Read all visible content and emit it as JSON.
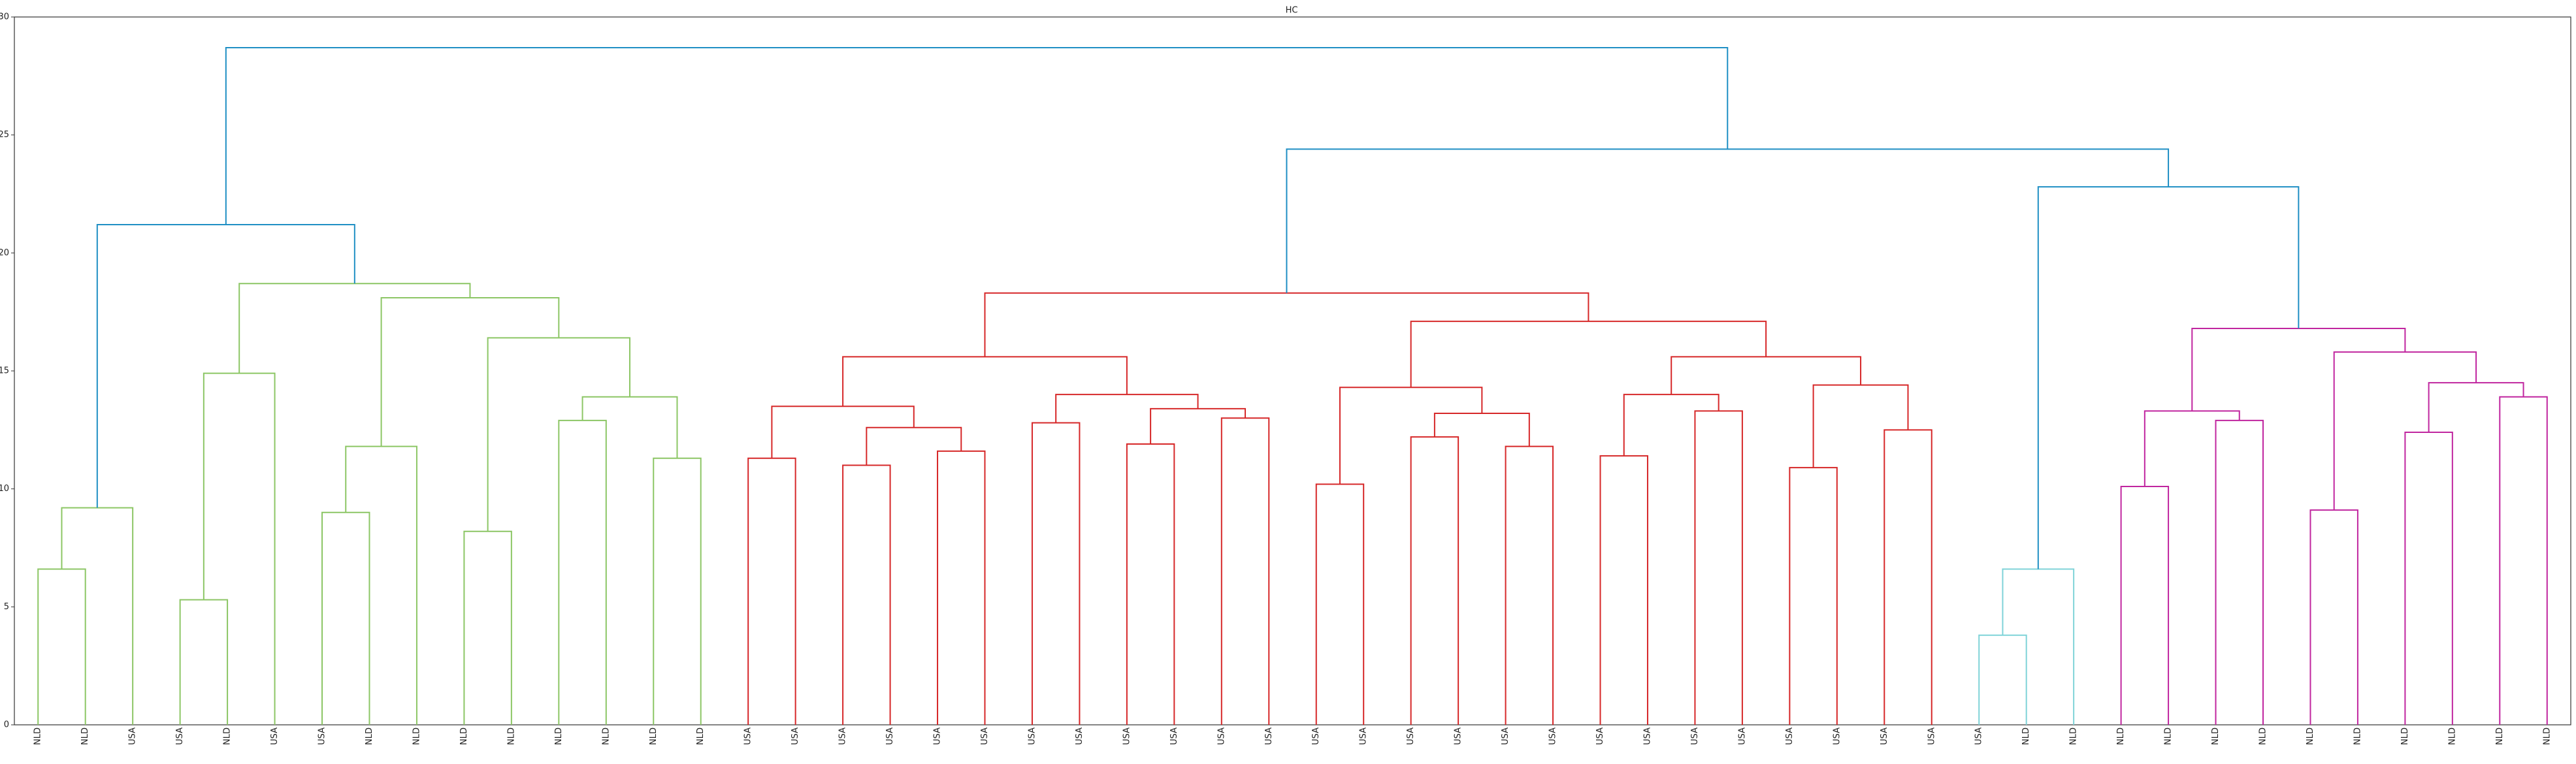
{
  "chart_data": {
    "type": "dendrogram",
    "title": "HC",
    "ylim": [
      0,
      30
    ],
    "yticks": [
      0,
      5,
      10,
      15,
      20,
      25,
      30
    ],
    "tree": {
      "height": 28.7,
      "color": "#1f8fc4",
      "children": [
        {
          "height": 21.2,
          "color": "#1f8fc4",
          "children": [
            {
              "height": 9.2,
              "color": "#8cc665",
              "children": [
                {
                  "height": 6.6,
                  "color": "#8cc665",
                  "children": [
                    {
                      "label": "NLD"
                    },
                    {
                      "label": "NLD"
                    }
                  ]
                },
                {
                  "label": "USA"
                }
              ]
            },
            {
              "height": 18.7,
              "color": "#8cc665",
              "children": [
                {
                  "height": 14.9,
                  "color": "#8cc665",
                  "children": [
                    {
                      "height": 5.3,
                      "color": "#8cc665",
                      "children": [
                        {
                          "label": "USA"
                        },
                        {
                          "label": "NLD"
                        }
                      ]
                    },
                    {
                      "label": "USA"
                    }
                  ]
                },
                {
                  "height": 18.1,
                  "color": "#8cc665",
                  "children": [
                    {
                      "height": 11.8,
                      "color": "#8cc665",
                      "children": [
                        {
                          "height": 9.0,
                          "color": "#8cc665",
                          "children": [
                            {
                              "label": "USA"
                            },
                            {
                              "label": "NLD"
                            }
                          ]
                        },
                        {
                          "label": "NLD"
                        }
                      ]
                    },
                    {
                      "height": 16.4,
                      "color": "#8cc665",
                      "children": [
                        {
                          "height": 8.2,
                          "color": "#8cc665",
                          "children": [
                            {
                              "label": "NLD"
                            },
                            {
                              "label": "NLD"
                            }
                          ]
                        },
                        {
                          "height": 13.9,
                          "color": "#8cc665",
                          "children": [
                            {
                              "height": 12.9,
                              "color": "#8cc665",
                              "children": [
                                {
                                  "label": "NLD"
                                },
                                {
                                  "label": "NLD"
                                }
                              ]
                            },
                            {
                              "height": 11.3,
                              "color": "#8cc665",
                              "children": [
                                {
                                  "label": "NLD"
                                },
                                {
                                  "label": "NLD"
                                }
                              ]
                            }
                          ]
                        }
                      ]
                    }
                  ]
                }
              ]
            }
          ]
        },
        {
          "height": 24.4,
          "color": "#1f8fc4",
          "children": [
            {
              "height": 18.3,
              "color": "#d62728",
              "children": [
                {
                  "height": 15.6,
                  "color": "#d62728",
                  "children": [
                    {
                      "height": 13.5,
                      "color": "#d62728",
                      "children": [
                        {
                          "height": 11.3,
                          "color": "#d62728",
                          "children": [
                            {
                              "label": "USA"
                            },
                            {
                              "label": "USA"
                            }
                          ]
                        },
                        {
                          "height": 12.6,
                          "color": "#d62728",
                          "children": [
                            {
                              "height": 11.0,
                              "color": "#d62728",
                              "children": [
                                {
                                  "label": "USA"
                                },
                                {
                                  "label": "USA"
                                }
                              ]
                            },
                            {
                              "height": 11.6,
                              "color": "#d62728",
                              "children": [
                                {
                                  "label": "USA"
                                },
                                {
                                  "label": "USA"
                                }
                              ]
                            }
                          ]
                        }
                      ]
                    },
                    {
                      "height": 14.0,
                      "color": "#d62728",
                      "children": [
                        {
                          "height": 12.8,
                          "color": "#d62728",
                          "children": [
                            {
                              "label": "USA"
                            },
                            {
                              "label": "USA"
                            }
                          ]
                        },
                        {
                          "height": 13.4,
                          "color": "#d62728",
                          "children": [
                            {
                              "height": 11.9,
                              "color": "#d62728",
                              "children": [
                                {
                                  "label": "USA"
                                },
                                {
                                  "label": "USA"
                                }
                              ]
                            },
                            {
                              "height": 13.0,
                              "color": "#d62728",
                              "children": [
                                {
                                  "label": "USA"
                                },
                                {
                                  "label": "USA"
                                }
                              ]
                            }
                          ]
                        }
                      ]
                    }
                  ]
                },
                {
                  "height": 17.1,
                  "color": "#d62728",
                  "children": [
                    {
                      "height": 14.3,
                      "color": "#d62728",
                      "children": [
                        {
                          "height": 10.2,
                          "color": "#d62728",
                          "children": [
                            {
                              "label": "USA"
                            },
                            {
                              "label": "USA"
                            }
                          ]
                        },
                        {
                          "height": 13.2,
                          "color": "#d62728",
                          "children": [
                            {
                              "height": 12.2,
                              "color": "#d62728",
                              "children": [
                                {
                                  "label": "USA"
                                },
                                {
                                  "label": "USA"
                                }
                              ]
                            },
                            {
                              "height": 11.8,
                              "color": "#d62728",
                              "children": [
                                {
                                  "label": "USA"
                                },
                                {
                                  "label": "USA"
                                }
                              ]
                            }
                          ]
                        }
                      ]
                    },
                    {
                      "height": 15.6,
                      "color": "#d62728",
                      "children": [
                        {
                          "height": 14.0,
                          "color": "#d62728",
                          "children": [
                            {
                              "height": 11.4,
                              "color": "#d62728",
                              "children": [
                                {
                                  "label": "USA"
                                },
                                {
                                  "label": "USA"
                                }
                              ]
                            },
                            {
                              "height": 13.3,
                              "color": "#d62728",
                              "children": [
                                {
                                  "label": "USA"
                                },
                                {
                                  "label": "USA"
                                }
                              ]
                            }
                          ]
                        },
                        {
                          "height": 14.4,
                          "color": "#d62728",
                          "children": [
                            {
                              "height": 10.9,
                              "color": "#d62728",
                              "children": [
                                {
                                  "label": "USA"
                                },
                                {
                                  "label": "USA"
                                }
                              ]
                            },
                            {
                              "height": 12.5,
                              "color": "#d62728",
                              "children": [
                                {
                                  "label": "USA"
                                },
                                {
                                  "label": "USA"
                                }
                              ]
                            }
                          ]
                        }
                      ]
                    }
                  ]
                }
              ]
            },
            {
              "height": 22.8,
              "color": "#1f8fc4",
              "children": [
                {
                  "height": 6.6,
                  "color": "#7fd3d8",
                  "children": [
                    {
                      "height": 3.8,
                      "color": "#7fd3d8",
                      "children": [
                        {
                          "label": "USA"
                        },
                        {
                          "label": "NLD"
                        }
                      ]
                    },
                    {
                      "label": "NLD"
                    }
                  ]
                },
                {
                  "height": 16.8,
                  "color": "#c0259f",
                  "children": [
                    {
                      "height": 13.3,
                      "color": "#c0259f",
                      "children": [
                        {
                          "height": 10.1,
                          "color": "#c0259f",
                          "children": [
                            {
                              "label": "NLD"
                            },
                            {
                              "label": "NLD"
                            }
                          ]
                        },
                        {
                          "height": 12.9,
                          "color": "#c0259f",
                          "children": [
                            {
                              "label": "NLD"
                            },
                            {
                              "label": "NLD"
                            }
                          ]
                        }
                      ]
                    },
                    {
                      "height": 15.8,
                      "color": "#c0259f",
                      "children": [
                        {
                          "height": 9.1,
                          "color": "#c0259f",
                          "children": [
                            {
                              "label": "NLD"
                            },
                            {
                              "label": "NLD"
                            }
                          ]
                        },
                        {
                          "height": 14.5,
                          "color": "#c0259f",
                          "children": [
                            {
                              "height": 12.4,
                              "color": "#c0259f",
                              "children": [
                                {
                                  "label": "NLD"
                                },
                                {
                                  "label": "NLD"
                                }
                              ]
                            },
                            {
                              "height": 13.9,
                              "color": "#c0259f",
                              "children": [
                                {
                                  "label": "NLD"
                                },
                                {
                                  "label": "NLD"
                                }
                              ]
                            }
                          ]
                        }
                      ]
                    }
                  ]
                }
              ]
            }
          ]
        }
      ]
    }
  }
}
